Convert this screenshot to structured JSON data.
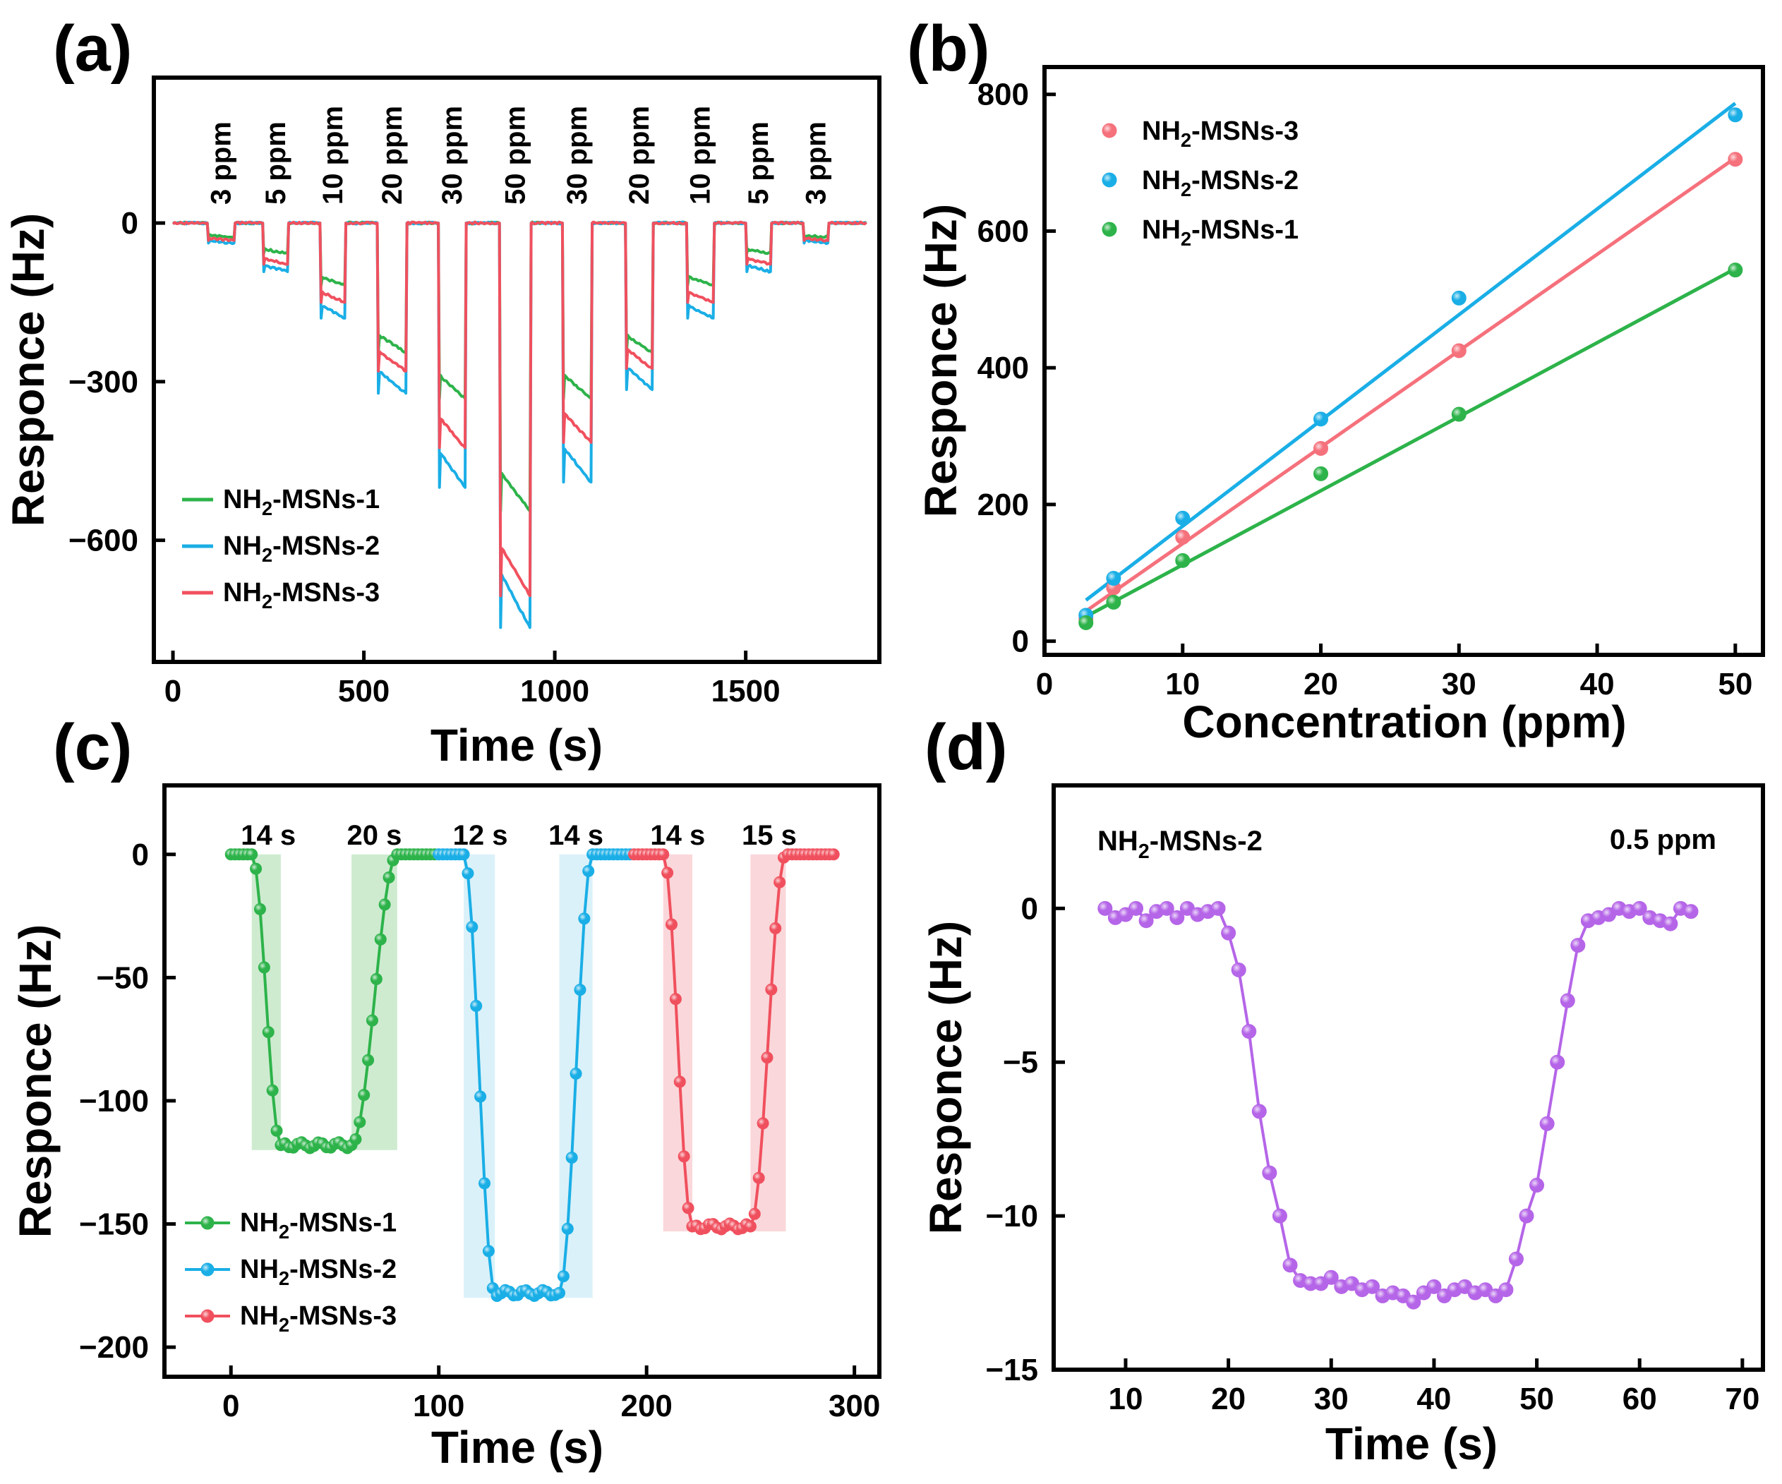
{
  "chart_data": [
    {
      "panel": "(a)",
      "type": "line",
      "xlabel": "Time (s)",
      "ylabel": "Responce (Hz)",
      "xlim": [
        -50,
        1850
      ],
      "ylim": [
        -830,
        275
      ],
      "xticks": [
        0,
        500,
        1000,
        1500
      ],
      "xtick_labels": [
        "0",
        "500",
        "1000",
        "1500"
      ],
      "yticks": [
        0,
        -300,
        -600
      ],
      "ytick_labels": [
        "0",
        "−300",
        "−600"
      ],
      "legend_position": "lower-left",
      "annotations": [
        "3 ppm",
        "5 ppm",
        "10 ppm",
        "20 ppm",
        "30 ppm",
        "50 ppm",
        "30 ppm",
        "20 ppm",
        "10 ppm",
        "5 ppm",
        "3 ppm"
      ],
      "pulse_on": [
        90,
        235,
        385,
        535,
        695,
        855,
        1020,
        1185,
        1345,
        1500,
        1650
      ],
      "pulse_off": [
        160,
        300,
        450,
        610,
        765,
        935,
        1095,
        1255,
        1415,
        1565,
        1715
      ],
      "series": [
        {
          "name": "NH2-MSNs-1",
          "sub": "2",
          "suffix": "-MSNs-1",
          "color": "#2db34a",
          "depth": [
            27,
            57,
            118,
            245,
            332,
            545,
            332,
            245,
            118,
            57,
            27
          ]
        },
        {
          "name": "NH2-MSNs-2",
          "sub": "2",
          "suffix": "-MSNs-2",
          "color": "#1aaee6",
          "depth": [
            38,
            92,
            180,
            322,
            500,
            765,
            490,
            315,
            180,
            92,
            38
          ]
        },
        {
          "name": "NH2-MSNs-3",
          "sub": "2",
          "suffix": "-MSNs-3",
          "color": "#f0505e",
          "depth": [
            33,
            78,
            150,
            280,
            425,
            705,
            415,
            275,
            150,
            78,
            33
          ]
        }
      ]
    },
    {
      "panel": "(b)",
      "type": "scatter",
      "xlabel": "Concentration (ppm)",
      "ylabel": "Responce (Hz)",
      "xlim": [
        0,
        52
      ],
      "ylim": [
        -20,
        840
      ],
      "xticks": [
        0,
        10,
        20,
        30,
        40,
        50
      ],
      "xtick_labels": [
        "0",
        "10",
        "20",
        "30",
        "40",
        "50"
      ],
      "yticks": [
        0,
        200,
        400,
        600,
        800
      ],
      "ytick_labels": [
        "0",
        "200",
        "400",
        "600",
        "800"
      ],
      "legend_position": "top-left",
      "x": [
        3,
        5,
        10,
        20,
        30,
        50
      ],
      "series": [
        {
          "name": "NH2-MSNs-3",
          "sub": "2",
          "suffix": "-MSNs-3",
          "color": "#f5717c",
          "values": [
            33,
            78,
            152,
            282,
            425,
            705
          ],
          "fit": [
            [
              3,
              44
            ],
            [
              50,
              707
            ]
          ]
        },
        {
          "name": "NH2-MSNs-2",
          "sub": "2",
          "suffix": "-MSNs-2",
          "color": "#1aaee6",
          "values": [
            38,
            92,
            180,
            325,
            502,
            770
          ],
          "fit": [
            [
              3,
              60
            ],
            [
              50,
              787
            ]
          ]
        },
        {
          "name": "NH2-MSNs-1",
          "sub": "2",
          "suffix": "-MSNs-1",
          "color": "#2db34a",
          "values": [
            27,
            57,
            118,
            245,
            332,
            543
          ],
          "fit": [
            [
              3,
              36
            ],
            [
              50,
              545
            ]
          ]
        }
      ]
    },
    {
      "panel": "(c)",
      "type": "line",
      "xlabel": "Time (s)",
      "ylabel": "Responce (Hz)",
      "xlim": [
        -32,
        312
      ],
      "ylim": [
        -212,
        28
      ],
      "xticks": [
        0,
        100,
        200,
        300
      ],
      "xtick_labels": [
        "0",
        "100",
        "200",
        "300"
      ],
      "yticks": [
        0,
        -50,
        -100,
        -150,
        -200
      ],
      "ytick_labels": [
        "0",
        "−50",
        "−100",
        "−150",
        "−200"
      ],
      "legend_position": "lower-left",
      "time_labels": [
        "14 s",
        "20 s",
        "12 s",
        "14 s",
        "14 s",
        "15 s"
      ],
      "shaded_regions": [
        {
          "series": 0,
          "x": [
            10,
            24
          ],
          "ylim": [
            -120,
            0
          ]
        },
        {
          "series": 0,
          "x": [
            58,
            80
          ],
          "ylim": [
            -120,
            0
          ]
        },
        {
          "series": 1,
          "x": [
            112,
            127
          ],
          "ylim": [
            -180,
            0
          ]
        },
        {
          "series": 1,
          "x": [
            158,
            174
          ],
          "ylim": [
            -180,
            0
          ]
        },
        {
          "series": 2,
          "x": [
            208,
            222
          ],
          "ylim": [
            -153,
            0
          ]
        },
        {
          "series": 2,
          "x": [
            250,
            267
          ],
          "ylim": [
            -153,
            0
          ]
        }
      ],
      "series": [
        {
          "name": "NH2-MSNs-1",
          "sub": "2",
          "suffix": "-MSNs-1",
          "color": "#2db34a",
          "shade": "#c6e7c8",
          "t_start": 0,
          "drop": [
            10,
            24
          ],
          "bottom": 118,
          "rise": [
            58,
            80
          ],
          "t_end": 98,
          "step": 2
        },
        {
          "name": "NH2-MSNs-2",
          "sub": "2",
          "suffix": "-MSNs-2",
          "color": "#1aaee6",
          "shade": "#d4eef8",
          "t_start": 100,
          "drop": [
            112,
            127
          ],
          "bottom": 178,
          "rise": [
            158,
            174
          ],
          "t_end": 192,
          "step": 2
        },
        {
          "name": "NH2-MSNs-3",
          "sub": "2",
          "suffix": "-MSNs-3",
          "color": "#f0505e",
          "shade": "#f9d0d4",
          "t_start": 194,
          "drop": [
            208,
            222
          ],
          "bottom": 151,
          "rise": [
            250,
            267
          ],
          "t_end": 290,
          "step": 2
        }
      ]
    },
    {
      "panel": "(d)",
      "type": "line",
      "xlabel": "Time (s)",
      "ylabel": "Responce (Hz)",
      "xlim": [
        3,
        72
      ],
      "ylim": [
        -15,
        4
      ],
      "xticks": [
        10,
        20,
        30,
        40,
        50,
        60,
        70
      ],
      "xtick_labels": [
        "10",
        "20",
        "30",
        "40",
        "50",
        "60",
        "70"
      ],
      "yticks": [
        0,
        -5,
        -10,
        -15
      ],
      "ytick_labels": [
        "0",
        "−5",
        "−10",
        "−15"
      ],
      "title_text": "NH2-MSNs-2",
      "title_sub": "2",
      "title_suffix": "-MSNs-2",
      "concentration": "0.5 ppm",
      "series": [
        {
          "name": "NH2-MSNs-2",
          "color": "#b565e8",
          "x": [
            8,
            9,
            10,
            11,
            12,
            13,
            14,
            15,
            16,
            17,
            18,
            19,
            20,
            21,
            22,
            23,
            24,
            25,
            26,
            27,
            28,
            29,
            30,
            31,
            32,
            33,
            34,
            35,
            36,
            37,
            38,
            39,
            40,
            41,
            42,
            43,
            44,
            45,
            46,
            47,
            48,
            49,
            50,
            51,
            52,
            53,
            54,
            55,
            56,
            57,
            58,
            59,
            60,
            61,
            62,
            63,
            64,
            65
          ],
          "y": [
            0,
            -0.3,
            -0.2,
            0,
            -0.4,
            -0.1,
            0,
            -0.3,
            0,
            -0.2,
            -0.1,
            0,
            -0.8,
            -2.0,
            -4.0,
            -6.6,
            -8.6,
            -10.0,
            -11.6,
            -12.1,
            -12.2,
            -12.2,
            -12.0,
            -12.3,
            -12.2,
            -12.4,
            -12.3,
            -12.6,
            -12.5,
            -12.6,
            -12.8,
            -12.5,
            -12.3,
            -12.6,
            -12.4,
            -12.3,
            -12.5,
            -12.4,
            -12.6,
            -12.4,
            -11.4,
            -10.0,
            -9.0,
            -7.0,
            -5.0,
            -3.0,
            -1.2,
            -0.4,
            -0.3,
            -0.2,
            0,
            -0.1,
            0,
            -0.3,
            -0.4,
            -0.5,
            0,
            -0.1
          ]
        }
      ]
    }
  ],
  "panel_labels": [
    "(a)",
    "(b)",
    "(c)",
    "(d)"
  ]
}
